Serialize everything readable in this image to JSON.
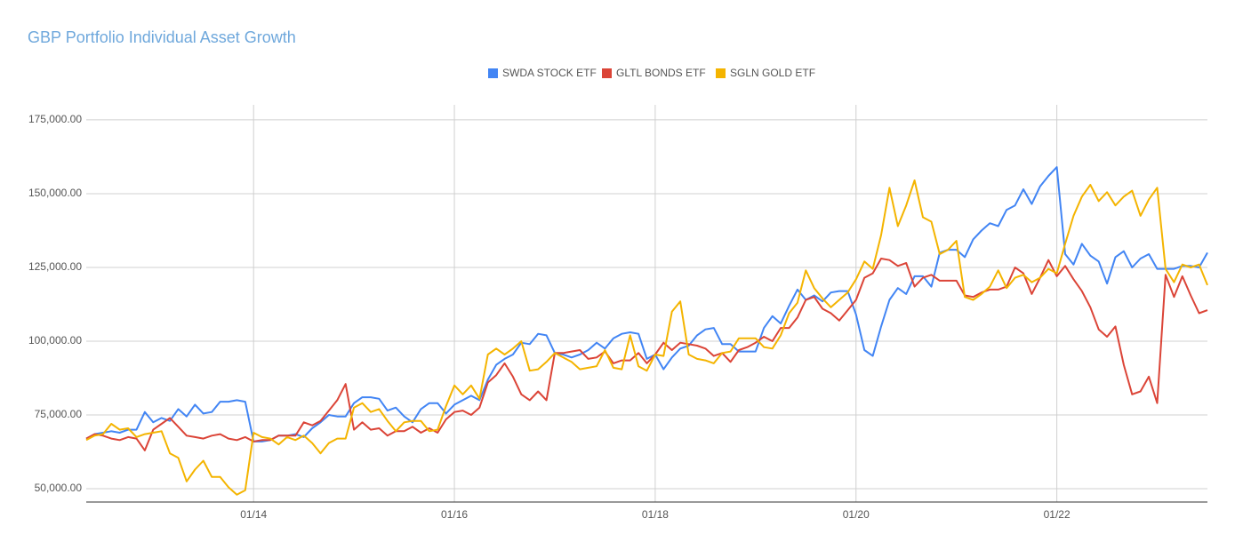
{
  "chart_data": {
    "type": "line",
    "title": "GBP Portfolio Individual Asset Growth",
    "x": [
      "05/12",
      "06/12",
      "07/12",
      "08/12",
      "09/12",
      "10/12",
      "11/12",
      "12/12",
      "01/13",
      "02/13",
      "03/13",
      "04/13",
      "05/13",
      "06/13",
      "07/13",
      "08/13",
      "09/13",
      "10/13",
      "11/13",
      "12/13",
      "01/14",
      "02/14",
      "03/14",
      "04/14",
      "05/14",
      "06/14",
      "07/14",
      "08/14",
      "09/14",
      "10/14",
      "11/14",
      "12/14",
      "01/15",
      "02/15",
      "03/15",
      "04/15",
      "05/15",
      "06/15",
      "07/15",
      "08/15",
      "09/15",
      "10/15",
      "11/15",
      "12/15",
      "01/16",
      "02/16",
      "03/16",
      "04/16",
      "05/16",
      "06/16",
      "07/16",
      "08/16",
      "09/16",
      "10/16",
      "11/16",
      "12/16",
      "01/17",
      "02/17",
      "03/17",
      "04/17",
      "05/17",
      "06/17",
      "07/17",
      "08/17",
      "09/17",
      "10/17",
      "11/17",
      "12/17",
      "01/18",
      "02/18",
      "03/18",
      "04/18",
      "05/18",
      "06/18",
      "07/18",
      "08/18",
      "09/18",
      "10/18",
      "11/18",
      "12/18",
      "01/19",
      "02/19",
      "03/19",
      "04/19",
      "05/19",
      "06/19",
      "07/19",
      "08/19",
      "09/19",
      "10/19",
      "11/19",
      "12/19",
      "01/20",
      "02/20",
      "03/20",
      "04/20",
      "05/20",
      "06/20",
      "07/20",
      "08/20",
      "09/20",
      "10/20",
      "11/20",
      "12/20",
      "01/21",
      "02/21",
      "03/21",
      "04/21",
      "05/21",
      "06/21",
      "07/21",
      "08/21",
      "09/21",
      "10/21",
      "11/21",
      "12/21",
      "01/22",
      "02/22",
      "03/22",
      "04/22",
      "05/22",
      "06/22",
      "07/22",
      "08/22",
      "09/22",
      "10/22",
      "11/22",
      "12/22",
      "01/23",
      "02/23",
      "03/23",
      "04/23",
      "05/23",
      "06/23",
      "07/23"
    ],
    "series": [
      {
        "name": "SWDA STOCK ETF",
        "color": "#4285f4",
        "values": [
          67000,
          68500,
          69000,
          69500,
          69000,
          70000,
          70000,
          76000,
          72500,
          74000,
          73000,
          77000,
          74500,
          78500,
          75500,
          76000,
          79500,
          79500,
          80000,
          79500,
          66000,
          66000,
          66500,
          68000,
          68000,
          68500,
          67500,
          70500,
          72500,
          75000,
          74500,
          74500,
          79000,
          81000,
          81000,
          80500,
          76500,
          77500,
          74500,
          72500,
          77000,
          79000,
          79000,
          75500,
          78500,
          80000,
          81500,
          80000,
          87000,
          92000,
          94000,
          95500,
          99500,
          99000,
          102500,
          102000,
          96000,
          95500,
          94500,
          95500,
          97000,
          99500,
          97500,
          101000,
          102500,
          103000,
          102500,
          94000,
          95500,
          90500,
          94500,
          97500,
          98500,
          102000,
          104000,
          104500,
          99000,
          99000,
          96500,
          96500,
          96500,
          104500,
          108500,
          106000,
          112000,
          117500,
          114000,
          115500,
          113500,
          116500,
          117000,
          117000,
          109000,
          97000,
          95000,
          105000,
          114000,
          118000,
          116000,
          122000,
          122000,
          118500,
          130000,
          131000,
          131000,
          128500,
          134500,
          137500,
          140000,
          139000,
          144500,
          146000,
          151500,
          146500,
          152500,
          156000,
          159000,
          129500,
          126000,
          133000,
          129000,
          127000,
          119500,
          128500,
          130500,
          125000,
          128000,
          129500,
          124500,
          124500,
          124500,
          125500,
          125500,
          125000,
          130000
        ]
      },
      {
        "name": "GLTL BONDS ETF",
        "color": "#db4437",
        "values": [
          67000,
          68500,
          68000,
          67000,
          66500,
          67500,
          67000,
          63000,
          70000,
          72000,
          74000,
          71000,
          68000,
          67500,
          67000,
          68000,
          68500,
          67000,
          66500,
          67500,
          66000,
          66500,
          66500,
          68000,
          68000,
          68000,
          72500,
          71500,
          73000,
          76500,
          80000,
          85500,
          70000,
          72500,
          70000,
          70500,
          68000,
          69500,
          69500,
          71000,
          69000,
          70500,
          69000,
          73500,
          76000,
          76500,
          75000,
          77500,
          86000,
          88500,
          92500,
          88000,
          82000,
          80000,
          83000,
          80000,
          96000,
          96000,
          96500,
          97000,
          94000,
          94500,
          96500,
          92500,
          93500,
          93500,
          96000,
          92500,
          95500,
          99500,
          97000,
          99500,
          99000,
          98500,
          97500,
          95000,
          96000,
          93000,
          97000,
          98000,
          99500,
          101500,
          100000,
          104500,
          104500,
          108000,
          114000,
          115000,
          111000,
          109500,
          107000,
          110500,
          114000,
          121500,
          123000,
          128000,
          127500,
          125500,
          126500,
          118500,
          121500,
          122500,
          120500,
          120500,
          120500,
          115500,
          115000,
          116500,
          117500,
          117500,
          118500,
          125000,
          123000,
          116000,
          121500,
          127500,
          122000,
          125500,
          121000,
          117000,
          111500,
          104000,
          101500,
          105000,
          92000,
          82000,
          83000,
          88000,
          79000,
          122500,
          115000,
          122000,
          115500,
          109500,
          110500
        ]
      },
      {
        "name": "SGLN GOLD ETF",
        "color": "#f4b400",
        "values": [
          66500,
          68000,
          68500,
          72000,
          70000,
          70500,
          67500,
          68500,
          69000,
          69500,
          62000,
          60500,
          52500,
          56500,
          59500,
          54000,
          54000,
          50500,
          48000,
          49500,
          69000,
          67500,
          67000,
          65000,
          67500,
          66500,
          68000,
          65500,
          62000,
          65500,
          67000,
          67000,
          77500,
          79000,
          76000,
          77000,
          73000,
          69500,
          72500,
          73000,
          73000,
          69500,
          70000,
          78000,
          85000,
          82000,
          85000,
          80500,
          95500,
          97500,
          95500,
          97500,
          100000,
          90000,
          90500,
          93000,
          96000,
          94500,
          93000,
          90500,
          91000,
          91500,
          97000,
          91000,
          90500,
          102000,
          91500,
          90000,
          95500,
          95000,
          110000,
          113500,
          95500,
          94000,
          93500,
          92500,
          96000,
          96500,
          101000,
          101000,
          101000,
          98000,
          97500,
          102000,
          109500,
          113000,
          124000,
          118000,
          114500,
          111500,
          114000,
          116500,
          121000,
          127000,
          124500,
          136000,
          152000,
          139000,
          146000,
          154500,
          142000,
          140500,
          129500,
          131000,
          134000,
          115000,
          114000,
          116000,
          118500,
          124000,
          118000,
          121500,
          122500,
          120000,
          121500,
          124500,
          123000,
          133000,
          142500,
          149000,
          153000,
          147500,
          150500,
          146000,
          149000,
          151000,
          142500,
          148000,
          152000,
          124500,
          120000,
          126000,
          125000,
          126000,
          119000
        ]
      }
    ],
    "xticks": [
      "01/14",
      "01/16",
      "01/18",
      "01/20",
      "01/22"
    ],
    "ylim": [
      45500,
      180100
    ],
    "yticks": [
      {
        "value": 50000,
        "label": "50,000.00"
      },
      {
        "value": 75000,
        "label": "75,000.00"
      },
      {
        "value": 100000,
        "label": "100,000.00"
      },
      {
        "value": 125000,
        "label": "125,000.00"
      },
      {
        "value": 150000,
        "label": "150,000.00"
      },
      {
        "value": 175000,
        "label": "175,000.00"
      }
    ],
    "grid": true,
    "legend": "top"
  }
}
